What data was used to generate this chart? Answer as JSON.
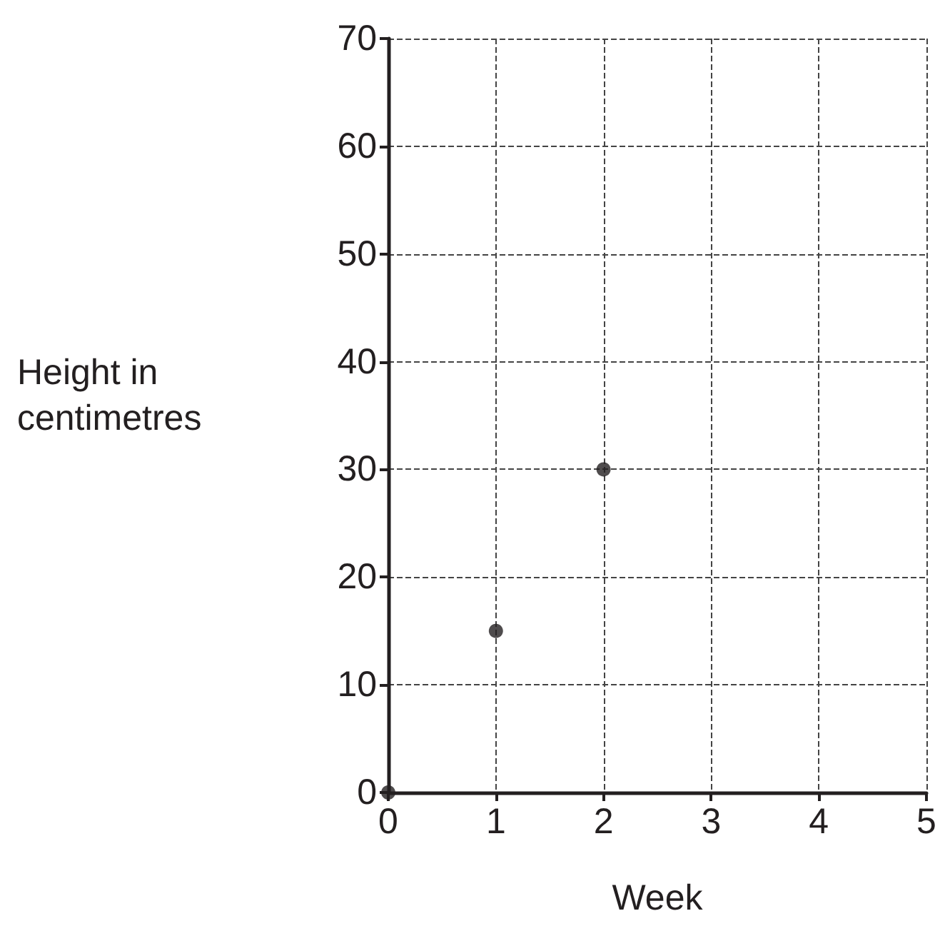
{
  "chart_data": {
    "type": "scatter",
    "xlabel": "Week",
    "ylabel": "Height in centimetres",
    "x": [
      0,
      1,
      2
    ],
    "values": [
      0,
      15,
      30
    ],
    "color": "#231f20",
    "marker": "circle",
    "xlim": [
      0,
      5
    ],
    "xticks": [
      0,
      1,
      2,
      3,
      4,
      5
    ],
    "ylim": [
      0,
      70
    ],
    "yticks": [
      0,
      10,
      20,
      30,
      40,
      50,
      60,
      70
    ],
    "grid": true
  }
}
